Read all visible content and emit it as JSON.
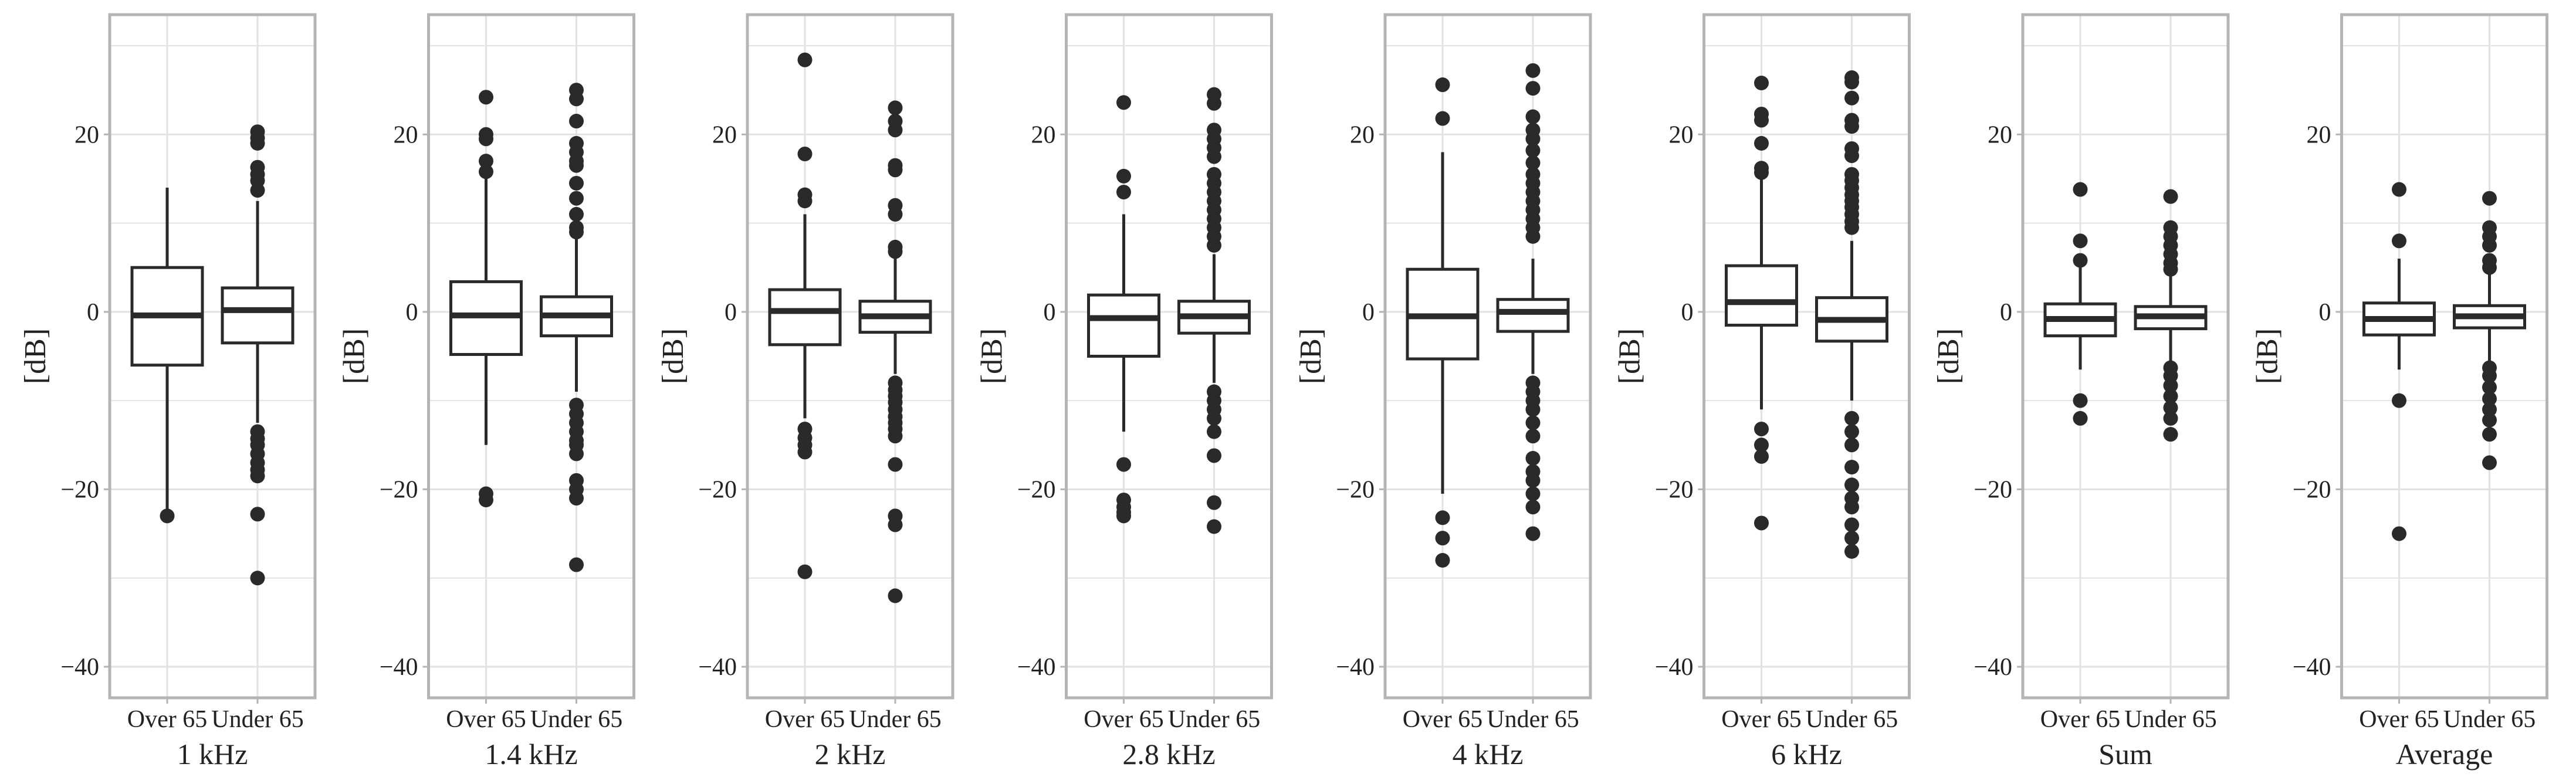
{
  "chart_data": {
    "type": "box",
    "ylabel": "[dB]",
    "ylim": [
      -43.5,
      33.5
    ],
    "yticks": [
      -40,
      -20,
      0,
      20
    ],
    "categories": [
      "Over 65",
      "Under 65"
    ],
    "style": {
      "frame": "#b4b4b4",
      "grid": "#e2e2e2",
      "ink": "#2a2a2a"
    },
    "panels": [
      {
        "title": "1 kHz",
        "boxes": [
          {
            "group": "Over 65",
            "q1": -6,
            "median": -0.4,
            "q3": 5,
            "whisker_low": -23,
            "whisker_high": 14,
            "outliers": [
              -23
            ]
          },
          {
            "group": "Under 65",
            "q1": -3.5,
            "median": 0.2,
            "q3": 2.7,
            "whisker_low": -12.5,
            "whisker_high": 12.5,
            "outliers": [
              20.3,
              19.6,
              19,
              16.3,
              15.5,
              14.8,
              13.7,
              -13.5,
              -14.3,
              -15,
              -16,
              -17,
              -17.8,
              -18.5,
              -22.8,
              -30
            ]
          }
        ]
      },
      {
        "title": "1.4 kHz",
        "boxes": [
          {
            "group": "Over 65",
            "q1": -4.8,
            "median": -0.4,
            "q3": 3.4,
            "whisker_low": -15,
            "whisker_high": 15,
            "outliers": [
              24.2,
              20,
              19.5,
              17,
              15.8,
              -20.5,
              -21.2
            ]
          },
          {
            "group": "Under 65",
            "q1": -2.7,
            "median": -0.4,
            "q3": 1.7,
            "whisker_low": -9,
            "whisker_high": 8.5,
            "outliers": [
              25,
              24,
              21.5,
              19,
              18,
              17,
              16.5,
              14.5,
              12.8,
              11,
              9.5,
              9,
              -10.5,
              -11.5,
              -12.5,
              -13.5,
              -14.5,
              -15,
              -16,
              -19,
              -20,
              -21,
              -28.5
            ]
          }
        ]
      },
      {
        "title": "2 kHz",
        "boxes": [
          {
            "group": "Over 65",
            "q1": -3.7,
            "median": 0.1,
            "q3": 2.5,
            "whisker_low": -12,
            "whisker_high": 11,
            "outliers": [
              28.4,
              17.8,
              13.2,
              12.5,
              -13.2,
              -14.2,
              -15,
              -15.8,
              -29.3
            ]
          },
          {
            "group": "Under 65",
            "q1": -2.3,
            "median": -0.5,
            "q3": 1.2,
            "whisker_low": -7,
            "whisker_high": 6,
            "outliers": [
              23,
              21.5,
              20.5,
              16.5,
              16,
              12,
              11,
              7.3,
              6.8,
              -8,
              -8.8,
              -9.5,
              -10.2,
              -11,
              -11.8,
              -12.5,
              -13.2,
              -14,
              -17.2,
              -23,
              -24,
              -32
            ]
          }
        ]
      },
      {
        "title": "2.8 kHz",
        "boxes": [
          {
            "group": "Over 65",
            "q1": -5,
            "median": -0.7,
            "q3": 1.9,
            "whisker_low": -13.5,
            "whisker_high": 11,
            "outliers": [
              23.6,
              15.3,
              13.5,
              -17.2,
              -21.2,
              -22,
              -22.6,
              -23
            ]
          },
          {
            "group": "Under 65",
            "q1": -2.4,
            "median": -0.5,
            "q3": 1.2,
            "whisker_low": -8,
            "whisker_high": 6.5,
            "outliers": [
              24.5,
              23.5,
              20.5,
              19.5,
              18.5,
              17.5,
              15.5,
              14.5,
              13.5,
              12.5,
              11.5,
              10.5,
              9.5,
              8.5,
              7.5,
              -9,
              -10,
              -11,
              -12,
              -13.5,
              -16.2,
              -21.5,
              -24.2
            ]
          }
        ]
      },
      {
        "title": "4 kHz",
        "boxes": [
          {
            "group": "Over 65",
            "q1": -5.3,
            "median": -0.5,
            "q3": 4.8,
            "whisker_low": -20.5,
            "whisker_high": 18,
            "outliers": [
              25.6,
              21.8,
              -23.2,
              -25.5,
              -28
            ]
          },
          {
            "group": "Under 65",
            "q1": -2.2,
            "median": 0,
            "q3": 1.4,
            "whisker_low": -7,
            "whisker_high": 6,
            "outliers": [
              27.2,
              25.2,
              22,
              20.5,
              19.5,
              18.2,
              16.8,
              15.5,
              14.5,
              13.5,
              12.5,
              11.5,
              10.5,
              9.5,
              8.5,
              -8,
              -9,
              -10,
              -11,
              -12.5,
              -14,
              -16.5,
              -18,
              -19,
              -20.5,
              -22,
              -25
            ]
          }
        ]
      },
      {
        "title": "6 kHz",
        "boxes": [
          {
            "group": "Over 65",
            "q1": -1.5,
            "median": 1.1,
            "q3": 5.2,
            "whisker_low": -11,
            "whisker_high": 15,
            "outliers": [
              25.8,
              22.3,
              21.6,
              19,
              16.2,
              15.7,
              -13.2,
              -15,
              -16.3,
              -23.8
            ]
          },
          {
            "group": "Under 65",
            "q1": -3.3,
            "median": -0.9,
            "q3": 1.6,
            "whisker_low": -10,
            "whisker_high": 8,
            "outliers": [
              26.4,
              25.9,
              24.1,
              21.6,
              20.9,
              18.4,
              17.6,
              15.5,
              14.8,
              14,
              13.2,
              12.5,
              11.8,
              11,
              10.2,
              9.5,
              -12,
              -13.5,
              -15,
              -17.5,
              -19.5,
              -21,
              -22,
              -24,
              -25.5,
              -27
            ]
          }
        ]
      },
      {
        "title": "Sum",
        "boxes": [
          {
            "group": "Over 65",
            "q1": -2.7,
            "median": -0.8,
            "q3": 0.9,
            "whisker_low": -6.5,
            "whisker_high": 5.8,
            "outliers": [
              13.8,
              8,
              5.8,
              -10,
              -12
            ]
          },
          {
            "group": "Under 65",
            "q1": -1.9,
            "median": -0.5,
            "q3": 0.6,
            "whisker_low": -5.5,
            "whisker_high": 4.5,
            "outliers": [
              13,
              9.5,
              8.5,
              7.5,
              6.5,
              5.5,
              4.8,
              -6.3,
              -7.2,
              -8.3,
              -9.5,
              -10.8,
              -12,
              -13.8
            ]
          }
        ]
      },
      {
        "title": "Average",
        "boxes": [
          {
            "group": "Over 65",
            "q1": -2.6,
            "median": -0.8,
            "q3": 1,
            "whisker_low": -6.5,
            "whisker_high": 6,
            "outliers": [
              13.8,
              8,
              -10,
              -25
            ]
          },
          {
            "group": "Under 65",
            "q1": -1.8,
            "median": -0.5,
            "q3": 0.7,
            "whisker_low": -5.5,
            "whisker_high": 4.5,
            "outliers": [
              12.8,
              9.5,
              8.5,
              7.5,
              5.8,
              5,
              -6.3,
              -7.2,
              -8.5,
              -9.8,
              -11,
              -12.2,
              -13.8,
              -17
            ]
          }
        ]
      }
    ]
  }
}
